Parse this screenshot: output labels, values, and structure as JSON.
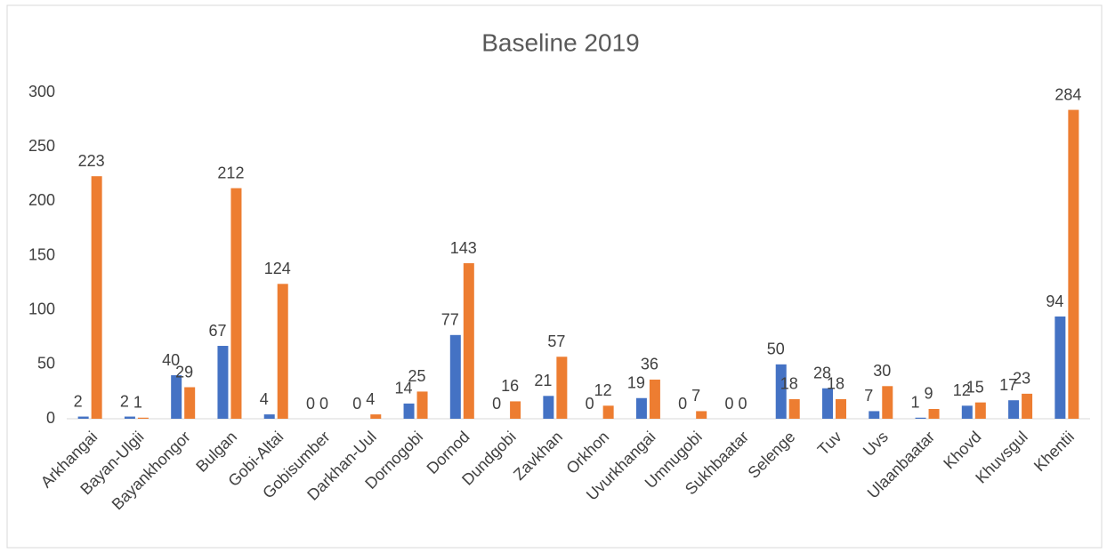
{
  "chart_data": {
    "type": "bar",
    "title": "Baseline 2019",
    "categories": [
      "Arkhangai",
      "Bayan-Ulgii",
      "Bayankhongor",
      "Bulgan",
      "Gobi-Altai",
      "Gobisumber",
      "Darkhan-Uul",
      "Dornogobi",
      "Dornod",
      "Dundgobi",
      "Zavkhan",
      "Orkhon",
      "Uvurkhangai",
      "Umnugobi",
      "Sukhbaatar",
      "Selenge",
      "Tuv",
      "Uvs",
      "Ulaanbaatar",
      "Khovd",
      "Khuvsgul",
      "Khentii"
    ],
    "series": [
      {
        "color": "#4472c4",
        "values": [
          2,
          2,
          40,
          67,
          4,
          0,
          0,
          14,
          77,
          0,
          21,
          0,
          19,
          0,
          0,
          50,
          28,
          7,
          1,
          12,
          17,
          94
        ]
      },
      {
        "color": "#ed7d31",
        "values": [
          223,
          1,
          29,
          212,
          124,
          0,
          4,
          25,
          143,
          16,
          57,
          12,
          36,
          7,
          0,
          18,
          18,
          30,
          9,
          15,
          23,
          284
        ]
      }
    ],
    "ylim": [
      0,
      300
    ],
    "yticks": [
      0,
      50,
      100,
      150,
      200,
      250,
      300
    ],
    "grid": false
  }
}
